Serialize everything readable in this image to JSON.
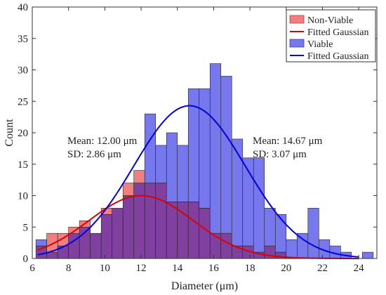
{
  "chart_data": {
    "type": "bar",
    "xlabel": "Diameter (μm)",
    "ylabel": "Count",
    "xlim": [
      6,
      25
    ],
    "ylim": [
      0,
      40
    ],
    "xticks": [
      6,
      8,
      10,
      12,
      14,
      16,
      18,
      20,
      22,
      24
    ],
    "yticks": [
      0,
      5,
      10,
      15,
      20,
      25,
      30,
      35,
      40
    ],
    "bin_width": 0.6,
    "legend_placement": "top-right",
    "series": [
      {
        "name": "Non-Viable",
        "color": "#f08080",
        "bins": [
          {
            "x0": 6.2,
            "count": 2
          },
          {
            "x0": 6.8,
            "count": 4
          },
          {
            "x0": 7.4,
            "count": 4
          },
          {
            "x0": 8.0,
            "count": 5
          },
          {
            "x0": 8.6,
            "count": 6
          },
          {
            "x0": 9.2,
            "count": 4
          },
          {
            "x0": 9.8,
            "count": 8
          },
          {
            "x0": 10.4,
            "count": 8
          },
          {
            "x0": 11.0,
            "count": 12
          },
          {
            "x0": 11.6,
            "count": 14
          },
          {
            "x0": 12.2,
            "count": 12
          },
          {
            "x0": 12.8,
            "count": 12
          },
          {
            "x0": 13.4,
            "count": 9
          },
          {
            "x0": 14.0,
            "count": 9
          },
          {
            "x0": 14.6,
            "count": 9
          },
          {
            "x0": 15.2,
            "count": 8
          },
          {
            "x0": 15.8,
            "count": 4
          },
          {
            "x0": 16.4,
            "count": 4
          },
          {
            "x0": 17.0,
            "count": 2
          },
          {
            "x0": 17.6,
            "count": 2
          },
          {
            "x0": 18.2,
            "count": 1
          },
          {
            "x0": 18.8,
            "count": 2
          },
          {
            "x0": 19.4,
            "count": 1
          }
        ]
      },
      {
        "name": "Viable",
        "color": "#7777ee",
        "bins": [
          {
            "x0": 6.2,
            "count": 3
          },
          {
            "x0": 6.8,
            "count": 1
          },
          {
            "x0": 7.4,
            "count": 2
          },
          {
            "x0": 8.0,
            "count": 4
          },
          {
            "x0": 8.6,
            "count": 5
          },
          {
            "x0": 9.2,
            "count": 4
          },
          {
            "x0": 9.8,
            "count": 7
          },
          {
            "x0": 10.4,
            "count": 8
          },
          {
            "x0": 11.0,
            "count": 10
          },
          {
            "x0": 11.6,
            "count": 12
          },
          {
            "x0": 12.2,
            "count": 23
          },
          {
            "x0": 12.8,
            "count": 18
          },
          {
            "x0": 13.4,
            "count": 20
          },
          {
            "x0": 14.0,
            "count": 18
          },
          {
            "x0": 14.6,
            "count": 27
          },
          {
            "x0": 15.2,
            "count": 27
          },
          {
            "x0": 15.8,
            "count": 31
          },
          {
            "x0": 16.4,
            "count": 29
          },
          {
            "x0": 17.0,
            "count": 19
          },
          {
            "x0": 17.6,
            "count": 16
          },
          {
            "x0": 18.2,
            "count": 16
          },
          {
            "x0": 18.8,
            "count": 8
          },
          {
            "x0": 19.4,
            "count": 7
          },
          {
            "x0": 20.0,
            "count": 3
          },
          {
            "x0": 20.6,
            "count": 4
          },
          {
            "x0": 21.2,
            "count": 8
          },
          {
            "x0": 21.8,
            "count": 3
          },
          {
            "x0": 22.4,
            "count": 2
          },
          {
            "x0": 23.0,
            "count": 1
          },
          {
            "x0": 23.6,
            "count": 0
          },
          {
            "x0": 24.2,
            "count": 1
          }
        ]
      }
    ],
    "overlap_color": "#8040a0",
    "fits": [
      {
        "name": "Fitted Gaussian",
        "color": "#dd0000",
        "mean": 12.0,
        "sd": 2.86,
        "peak": 10.0
      },
      {
        "name": "Fitted Gaussian",
        "color": "#0000dd",
        "mean": 14.67,
        "sd": 3.07,
        "peak": 24.3
      }
    ],
    "annotations": [
      {
        "line1": "Mean: 12.00 μm",
        "line2": "SD: 2.86 μm",
        "color": "#dd0000"
      },
      {
        "line1": "Mean: 14.67 μm",
        "line2": "SD: 3.07 μm",
        "color": "#0000dd"
      }
    ],
    "legend": [
      {
        "label": "Non-Viable",
        "kind": "patch",
        "color": "#f08080"
      },
      {
        "label": "Fitted Gaussian",
        "kind": "line",
        "color": "#dd0000"
      },
      {
        "label": "Viable",
        "kind": "patch",
        "color": "#7777ee"
      },
      {
        "label": "Fitted Gaussian",
        "kind": "line",
        "color": "#0000dd"
      }
    ]
  }
}
